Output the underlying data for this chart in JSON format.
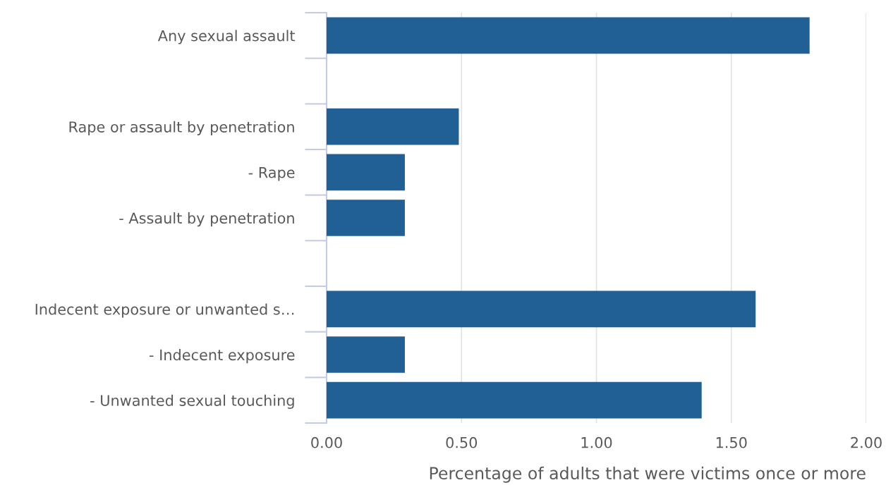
{
  "chart_data": {
    "type": "bar",
    "orientation": "horizontal",
    "xlabel": "Percentage of adults that were victims once or more",
    "categories": [
      "Any sexual assault",
      null,
      "Rape or assault by penetration",
      "- Rape",
      "- Assault by penetration",
      null,
      "Indecent exposure or unwanted s…",
      "- Indecent exposure",
      "- Unwanted sexual touching"
    ],
    "values": [
      1.79,
      null,
      0.49,
      0.29,
      0.29,
      null,
      1.59,
      0.29,
      1.39
    ],
    "color": "#206095",
    "xlim": [
      0,
      2
    ],
    "xticks": [
      {
        "value": 0,
        "label": "0.00"
      },
      {
        "value": 0.5,
        "label": "0.50"
      },
      {
        "value": 1,
        "label": "1.00"
      },
      {
        "value": 1.5,
        "label": "1.50"
      },
      {
        "value": 2,
        "label": "2.00"
      }
    ],
    "grid": "x"
  }
}
